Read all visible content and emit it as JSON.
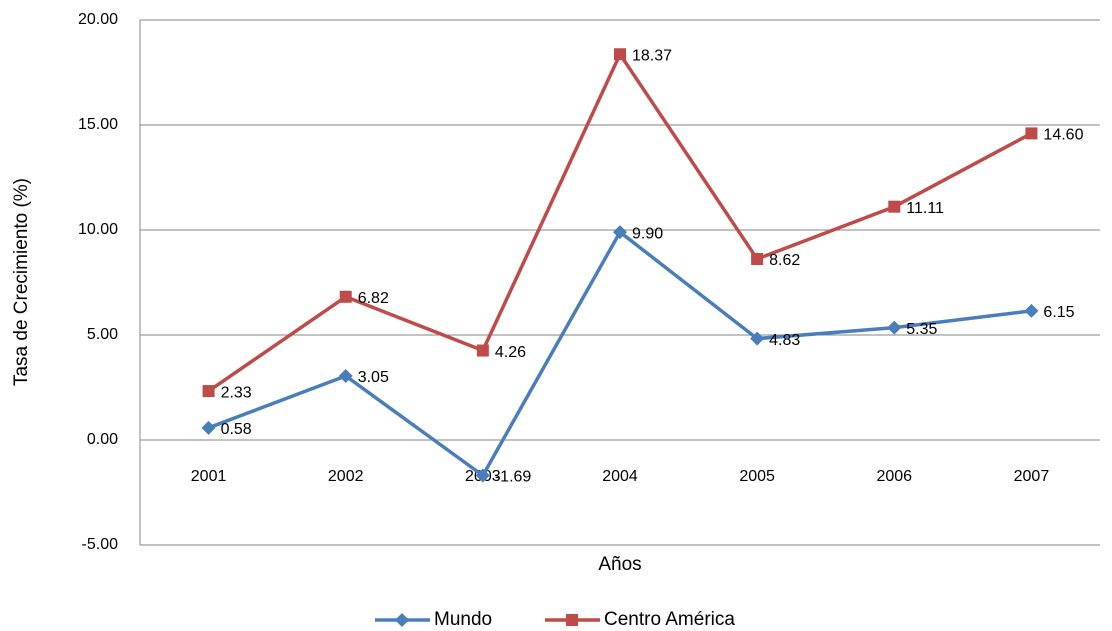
{
  "chart_data": {
    "type": "line",
    "y_label": "Tasa de Crecimiento (%)",
    "x_label": "Años",
    "categories": [
      "2001",
      "2002",
      "2003",
      "2004",
      "2005",
      "2006",
      "2007"
    ],
    "series": [
      {
        "name": "Mundo",
        "color": "#4a7ebb",
        "values": [
          0.58,
          3.05,
          -1.69,
          9.9,
          4.83,
          5.35,
          6.15
        ],
        "value_labels": [
          "0.58",
          "3.05",
          "-1.69",
          "9.90",
          "4.83",
          "5.35",
          "6.15"
        ]
      },
      {
        "name": "Centro América",
        "color": "#be4b48",
        "values": [
          2.33,
          6.82,
          4.26,
          18.37,
          8.62,
          11.11,
          14.6
        ],
        "value_labels": [
          "2.33",
          "6.82",
          "4.26",
          "18.37",
          "8.62",
          "11.11",
          "14.60"
        ]
      }
    ],
    "ylim": [
      -5,
      20
    ],
    "yticks": [
      {
        "value": -5,
        "label": "-5.00"
      },
      {
        "value": 0,
        "label": "0.00"
      },
      {
        "value": 5,
        "label": "5.00"
      },
      {
        "value": 10,
        "label": "10.00"
      },
      {
        "value": 15,
        "label": "15.00"
      },
      {
        "value": 20,
        "label": "20.00"
      }
    ],
    "grid": true
  }
}
